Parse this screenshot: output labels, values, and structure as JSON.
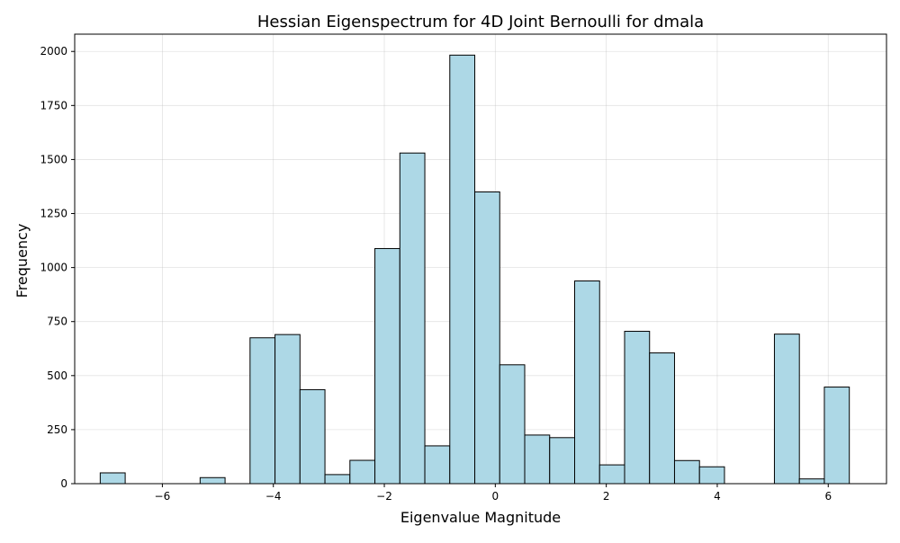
{
  "chart_data": {
    "type": "bar",
    "title": "Hessian Eigenspectrum for 4D Joint Bernoulli for dmala",
    "xlabel": "Eigenvalue Magnitude",
    "ylabel": "Frequency",
    "xlim": [
      -7.58,
      7.05
    ],
    "ylim": [
      0,
      2080
    ],
    "grid": true,
    "bar_color": "#add8e6",
    "edge_color": "#000000",
    "bin_edges": [
      -7.12,
      -6.67,
      -6.22,
      -5.77,
      -5.32,
      -4.87,
      -4.42,
      -3.97,
      -3.52,
      -3.07,
      -2.62,
      -2.17,
      -1.72,
      -1.27,
      -0.82,
      -0.37,
      0.08,
      0.53,
      0.98,
      1.43,
      1.88,
      2.33,
      2.78,
      3.23,
      3.68,
      4.13,
      4.58,
      5.03,
      5.48,
      5.93,
      6.38
    ],
    "values": [
      50,
      0,
      0,
      0,
      28,
      0,
      675,
      690,
      435,
      42,
      108,
      1088,
      1530,
      175,
      1983,
      1350,
      550,
      225,
      213,
      938,
      87,
      705,
      605,
      107,
      78,
      0,
      0,
      692,
      22,
      447
    ],
    "xticks": [
      -6,
      -4,
      -2,
      0,
      2,
      4,
      6
    ],
    "xtick_labels": [
      "−6",
      "−4",
      "−2",
      "0",
      "2",
      "4",
      "6"
    ],
    "yticks": [
      0,
      250,
      500,
      750,
      1000,
      1250,
      1500,
      1750,
      2000
    ],
    "ytick_labels": [
      "0",
      "250",
      "500",
      "750",
      "1000",
      "1250",
      "1500",
      "1750",
      "2000"
    ]
  }
}
